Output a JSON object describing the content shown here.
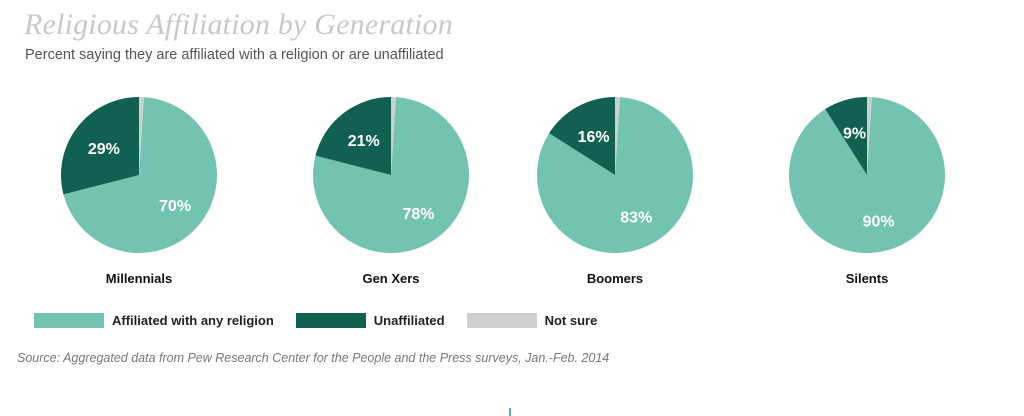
{
  "header": {
    "title": "Religious Affiliation by Generation",
    "subtitle": "Percent saying they are affiliated with a religion or are unaffiliated"
  },
  "chart_data": {
    "type": "pie",
    "categories": [
      "Affiliated with any religion",
      "Unaffiliated",
      "Not sure"
    ],
    "colors": [
      "#72c3b0",
      "#106152",
      "#cfcfcf"
    ],
    "label_colors": [
      "#ffffff",
      "#ffffff",
      "#333333"
    ],
    "pies": [
      {
        "name": "Millennials",
        "values": [
          70,
          29,
          1
        ],
        "labels": [
          "70%",
          "29%",
          ""
        ]
      },
      {
        "name": "Gen Xers",
        "values": [
          78,
          21,
          1
        ],
        "labels": [
          "78%",
          "21%",
          ""
        ]
      },
      {
        "name": "Boomers",
        "values": [
          83,
          16,
          1
        ],
        "labels": [
          "83%",
          "16%",
          ""
        ]
      },
      {
        "name": "Silents",
        "values": [
          90,
          9,
          1
        ],
        "labels": [
          "90%",
          "9%",
          ""
        ]
      }
    ]
  },
  "legend": {
    "items": [
      {
        "label": "Affiliated with any religion",
        "color": "#72c3b0"
      },
      {
        "label": "Unaffiliated",
        "color": "#106152"
      },
      {
        "label": "Not sure",
        "color": "#cfcfcf"
      }
    ]
  },
  "source": "Source: Aggregated data from Pew Research Center for the People and the Press surveys, Jan.-Feb. 2014"
}
